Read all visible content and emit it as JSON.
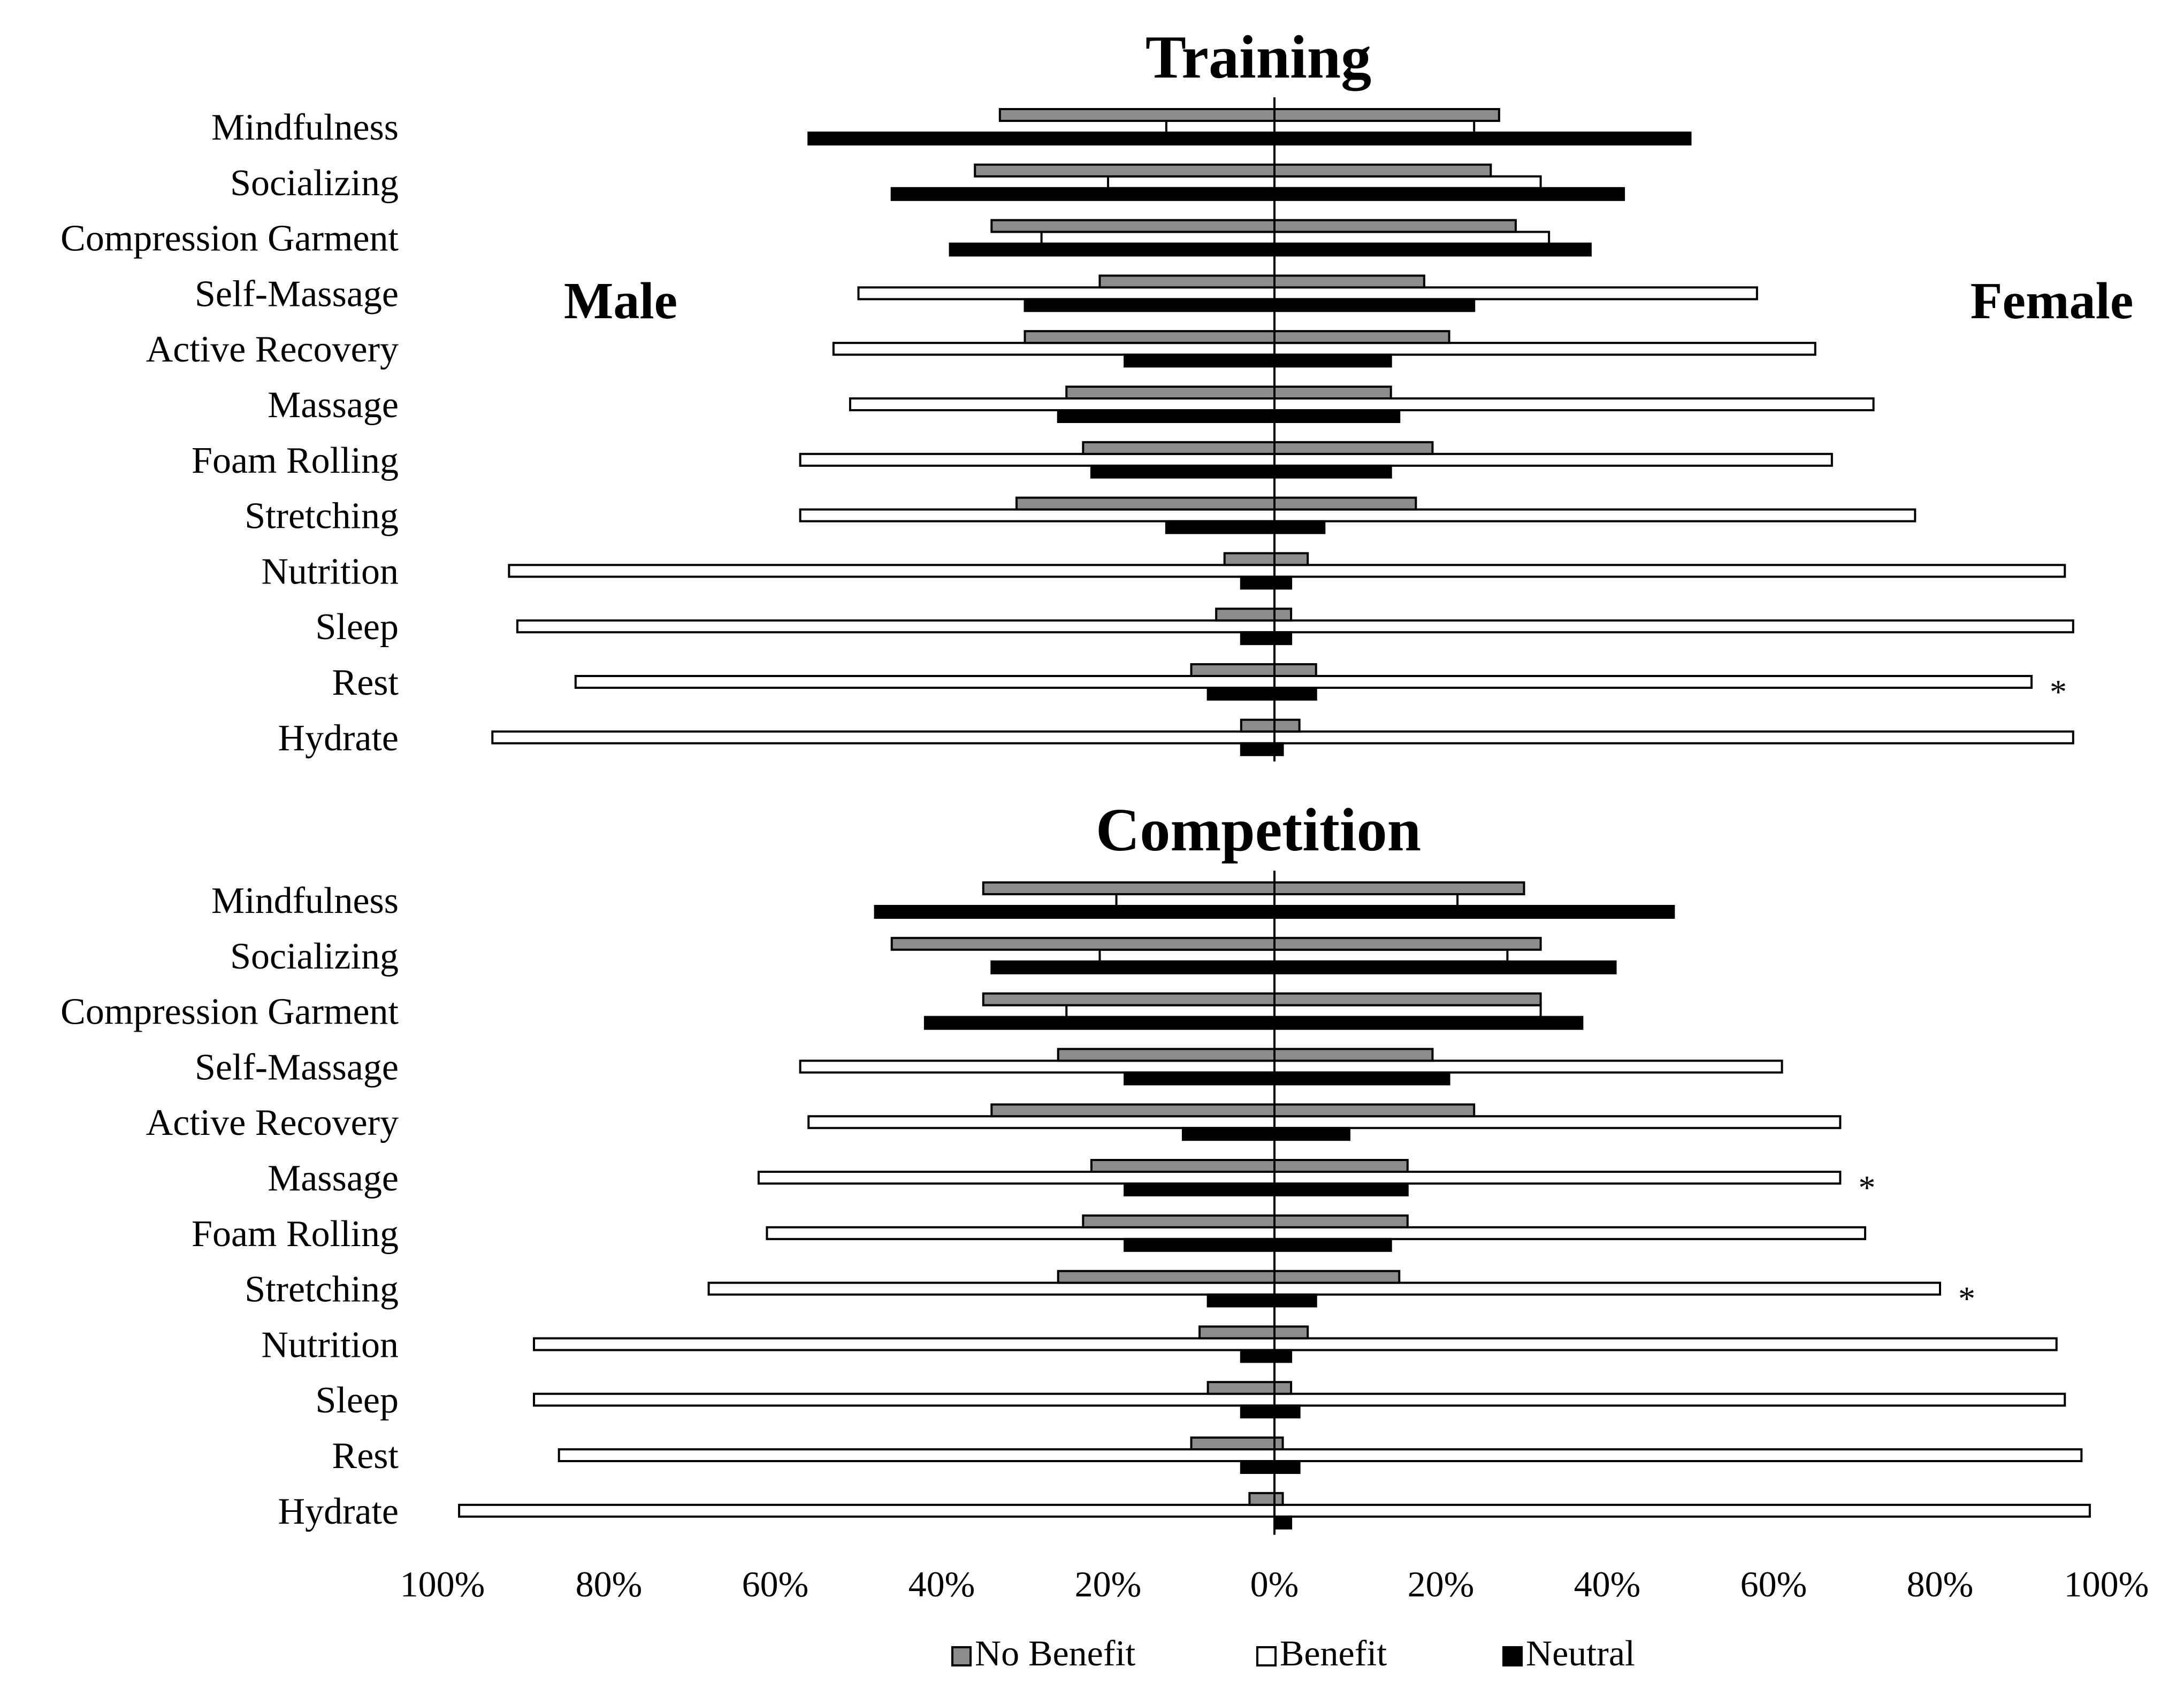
{
  "colors": {
    "no_benefit": "#8c8c8c",
    "benefit": "#ffffff",
    "neutral": "#000000",
    "stroke": "#000000"
  },
  "labels": {
    "male": "Male",
    "female": "Female"
  },
  "chart_data": [
    {
      "type": "bar",
      "orientation": "horizontal-diverging",
      "title": "Training",
      "categories": [
        "Mindfulness",
        "Socializing",
        "Compression Garment",
        "Self-Massage",
        "Active Recovery",
        "Massage",
        "Foam Rolling",
        "Stretching",
        "Nutrition",
        "Sleep",
        "Rest",
        "Hydrate"
      ],
      "xlim": [
        -100,
        100
      ],
      "series": [
        {
          "name": "No Benefit",
          "male": [
            33,
            36,
            34,
            21,
            30,
            25,
            23,
            31,
            6,
            7,
            10,
            4
          ],
          "female": [
            27,
            26,
            29,
            18,
            21,
            14,
            19,
            17,
            4,
            2,
            5,
            3
          ]
        },
        {
          "name": "Benefit",
          "male": [
            13,
            20,
            28,
            50,
            53,
            51,
            57,
            57,
            92,
            91,
            84,
            94
          ],
          "female": [
            24,
            32,
            33,
            58,
            65,
            72,
            67,
            77,
            95,
            96,
            91,
            96
          ]
        },
        {
          "name": "Neutral",
          "male": [
            56,
            46,
            39,
            30,
            18,
            26,
            22,
            13,
            4,
            4,
            8,
            4
          ],
          "female": [
            50,
            42,
            38,
            24,
            14,
            15,
            14,
            6,
            2,
            2,
            5,
            1
          ]
        }
      ],
      "significant": [
        "Rest"
      ]
    },
    {
      "type": "bar",
      "orientation": "horizontal-diverging",
      "title": "Competition",
      "categories": [
        "Mindfulness",
        "Socializing",
        "Compression Garment",
        "Self-Massage",
        "Active Recovery",
        "Massage",
        "Foam Rolling",
        "Stretching",
        "Nutrition",
        "Sleep",
        "Rest",
        "Hydrate"
      ],
      "xlim": [
        -100,
        100
      ],
      "series": [
        {
          "name": "No Benefit",
          "male": [
            35,
            46,
            35,
            26,
            34,
            22,
            23,
            26,
            9,
            8,
            10,
            3
          ],
          "female": [
            30,
            32,
            32,
            19,
            24,
            16,
            16,
            15,
            4,
            2,
            1,
            1
          ]
        },
        {
          "name": "Benefit",
          "male": [
            19,
            21,
            25,
            57,
            56,
            62,
            61,
            68,
            89,
            89,
            86,
            98
          ],
          "female": [
            22,
            28,
            32,
            61,
            68,
            68,
            71,
            80,
            94,
            95,
            97,
            98
          ]
        },
        {
          "name": "Neutral",
          "male": [
            48,
            34,
            42,
            18,
            11,
            18,
            18,
            8,
            4,
            4,
            4,
            0
          ],
          "female": [
            48,
            41,
            37,
            21,
            9,
            16,
            14,
            5,
            2,
            3,
            3,
            2
          ]
        }
      ],
      "significant": [
        "Massage",
        "Stretching"
      ]
    }
  ],
  "x_axis": {
    "ticks": [
      -100,
      -80,
      -60,
      -40,
      -20,
      0,
      20,
      40,
      60,
      80,
      100
    ],
    "tick_labels": [
      "100%",
      "80%",
      "60%",
      "40%",
      "20%",
      "0%",
      "20%",
      "40%",
      "60%",
      "80%",
      "100%"
    ]
  },
  "legend": {
    "placement": "bottom-center",
    "items": [
      "No Benefit",
      "Benefit",
      "Neutral"
    ]
  },
  "significance_marker": "*"
}
